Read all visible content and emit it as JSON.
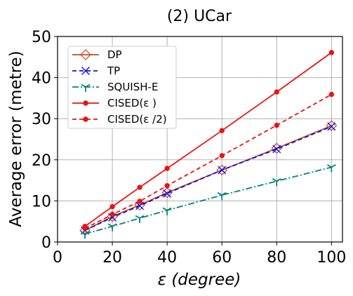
{
  "chart_data": {
    "type": "line",
    "title": "(2) UCar",
    "xlabel": "ε (degree)",
    "ylabel": "Average error (metre)",
    "xlim": [
      0,
      104
    ],
    "ylim": [
      0,
      50
    ],
    "xticks": [
      0,
      20,
      40,
      60,
      80,
      100
    ],
    "yticks": [
      0,
      10,
      20,
      30,
      40,
      50
    ],
    "grid": true,
    "legend_position": "top-left",
    "x": [
      10,
      20,
      30,
      40,
      60,
      80,
      100
    ],
    "series": [
      {
        "name": "DP",
        "values": [
          2.8,
          6.2,
          9.0,
          12.0,
          17.5,
          22.8,
          28.3
        ],
        "color": "#c0501e",
        "marker": "diamond-open",
        "dash": "solid"
      },
      {
        "name": "TP",
        "values": [
          2.8,
          6.0,
          8.8,
          11.8,
          17.5,
          22.6,
          28.1
        ],
        "color": "#1010e0",
        "marker": "x",
        "dash": "dashed"
      },
      {
        "name": "SQUISH-E",
        "values": [
          2.0,
          3.8,
          5.8,
          7.7,
          11.4,
          14.8,
          18.2
        ],
        "color": "#008080",
        "marker": "tri-down",
        "dash": "dashdot"
      },
      {
        "name": "CISED(ε )",
        "values": [
          3.8,
          8.6,
          13.3,
          17.9,
          27.1,
          36.5,
          46.1
        ],
        "color": "#ee1111",
        "marker": "dot",
        "dash": "solid"
      },
      {
        "name": "CISED(ε /2)",
        "values": [
          3.3,
          6.7,
          9.9,
          13.7,
          21.0,
          28.4,
          35.9
        ],
        "color": "#ee1111",
        "marker": "dot",
        "dash": "dashed"
      }
    ]
  }
}
